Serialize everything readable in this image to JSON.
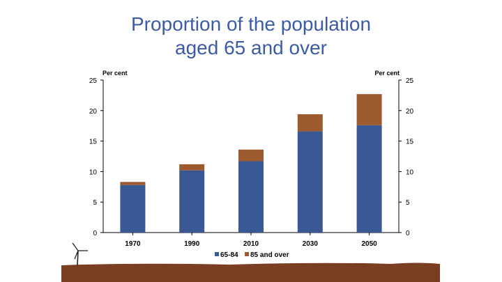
{
  "title_line1": "Proportion of the population",
  "title_line2": "aged 65 and over",
  "colors": {
    "title": "#3b5ba5",
    "series_65_84": "#3a5893",
    "series_85_over": "#9c5a2e",
    "ground": "#7a3f22"
  },
  "chart_data": {
    "type": "bar",
    "stacked": true,
    "title": "Proportion of the population aged 65 and over",
    "ylabel_left": "Per cent",
    "ylabel_right": "Per cent",
    "ylim": [
      0,
      25
    ],
    "yticks": [
      0,
      5,
      10,
      15,
      20,
      25
    ],
    "categories": [
      "1970",
      "1990",
      "2010",
      "2030",
      "2050"
    ],
    "series": [
      {
        "name": "65-84",
        "values": [
          7.8,
          10.2,
          11.7,
          16.6,
          17.6
        ]
      },
      {
        "name": "85 and over",
        "values": [
          0.5,
          1.0,
          1.9,
          2.8,
          5.1
        ]
      }
    ],
    "legend_position": "bottom"
  }
}
